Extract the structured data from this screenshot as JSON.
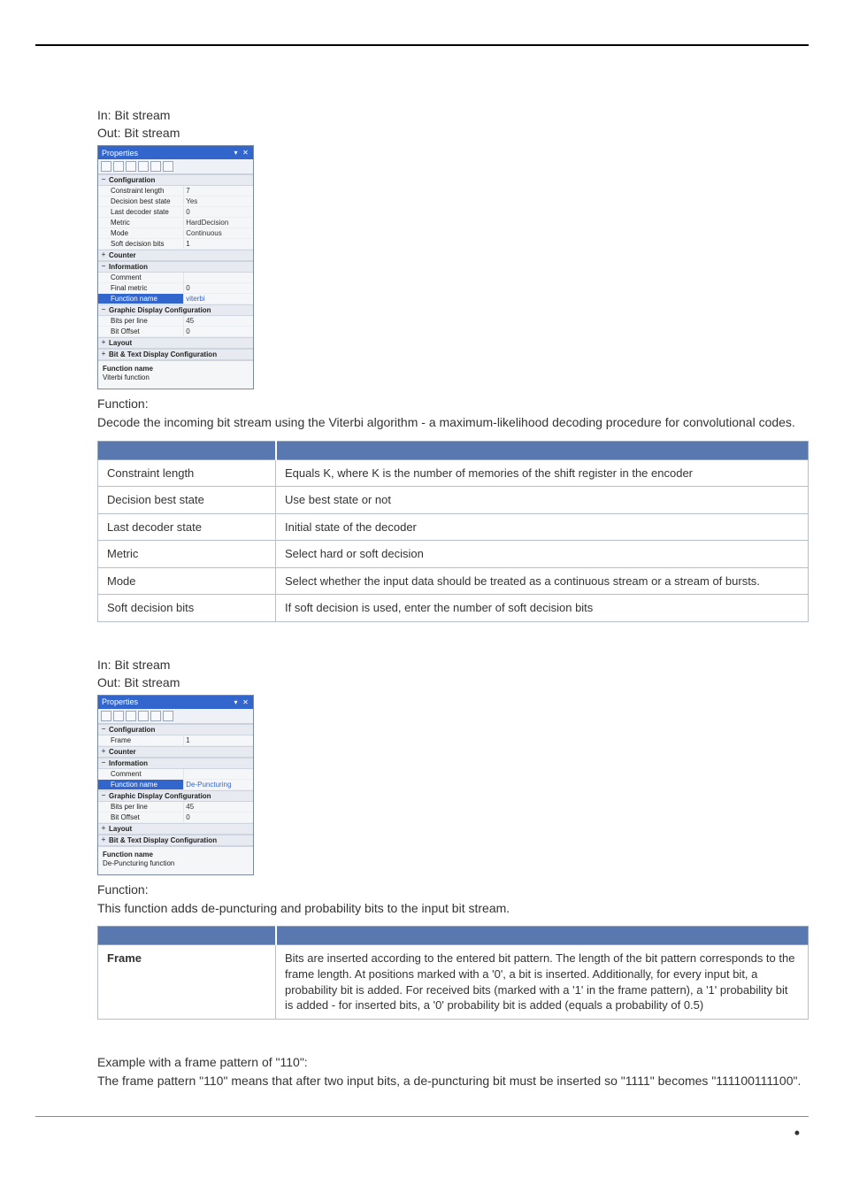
{
  "page": {
    "dot": "•"
  },
  "section1": {
    "in": "In: Bit stream",
    "out": "Out: Bit stream",
    "func_label": "Function:",
    "func_desc": "Decode the incoming bit stream using the Viterbi algorithm - a maximum-likelihood decoding procedure for convolutional codes.",
    "props": {
      "title": "Properties",
      "help_title": "Function name",
      "help_text": "Viterbi function",
      "cats": [
        {
          "name": "Configuration",
          "rows": [
            {
              "k": "Constraint length",
              "v": "7"
            },
            {
              "k": "Decision best state",
              "v": "Yes"
            },
            {
              "k": "Last decoder state",
              "v": "0"
            },
            {
              "k": "Metric",
              "v": "HardDecision"
            },
            {
              "k": "Mode",
              "v": "Continuous"
            },
            {
              "k": "Soft decision bits",
              "v": "1"
            }
          ]
        },
        {
          "name": "Counter",
          "collapsed": true,
          "rows": []
        },
        {
          "name": "Information",
          "rows": [
            {
              "k": "Comment",
              "v": ""
            },
            {
              "k": "Final metric",
              "v": "0"
            },
            {
              "k": "Function name",
              "v": "viterbi",
              "sel": true
            }
          ]
        },
        {
          "name": "Graphic Display Configuration",
          "rows": [
            {
              "k": "Bits per line",
              "v": "45"
            },
            {
              "k": "Bit Offset",
              "v": "0"
            }
          ]
        },
        {
          "name": "Layout",
          "collapsed": true,
          "rows": []
        },
        {
          "name": "Bit & Text Display Configuration",
          "collapsed": true,
          "rows": []
        }
      ]
    },
    "table": [
      {
        "k": "Constraint length",
        "v": "Equals K, where K is the number of memories of the shift register in the encoder"
      },
      {
        "k": "Decision best state",
        "v": "Use best state or not"
      },
      {
        "k": "Last decoder state",
        "v": "Initial state of the decoder"
      },
      {
        "k": "Metric",
        "v": "Select hard or soft decision"
      },
      {
        "k": "Mode",
        "v": "Select whether the input data should be treated as a continuous stream or a stream of bursts."
      },
      {
        "k": "Soft decision bits",
        "v": "If soft decision is used, enter the number of soft decision bits"
      }
    ]
  },
  "section2": {
    "in": "In: Bit stream",
    "out": "Out: Bit stream",
    "func_label": "Function:",
    "func_desc": "This function adds de-puncturing and probability bits to the input bit stream.",
    "props": {
      "title": "Properties",
      "help_title": "Function name",
      "help_text": "De-Puncturing function",
      "cats": [
        {
          "name": "Configuration",
          "rows": [
            {
              "k": "Frame",
              "v": "1"
            }
          ]
        },
        {
          "name": "Counter",
          "collapsed": true,
          "rows": []
        },
        {
          "name": "Information",
          "rows": [
            {
              "k": "Comment",
              "v": ""
            },
            {
              "k": "Function name",
              "v": "De-Puncturing",
              "sel": true
            }
          ]
        },
        {
          "name": "Graphic Display Configuration",
          "rows": [
            {
              "k": "Bits per line",
              "v": "45"
            },
            {
              "k": "Bit Offset",
              "v": "0"
            }
          ]
        },
        {
          "name": "Layout",
          "collapsed": true,
          "rows": []
        },
        {
          "name": "Bit & Text Display Configuration",
          "collapsed": true,
          "rows": []
        }
      ]
    },
    "table": [
      {
        "k": "Frame",
        "v": "Bits are inserted according to the entered bit pattern. The length of the bit pattern corresponds to the frame length. At positions marked with a '0', a bit is inserted. Additionally, for every input bit, a probability bit is added. For received bits (marked with a '1' in the frame pattern), a '1' probability bit is added - for inserted bits, a '0' probability bit is added (equals a probability of 0.5)"
      }
    ],
    "example_label": "Example with a frame pattern of \"110\":",
    "example_desc": "The frame pattern \"110\" means that after two input bits, a de-puncturing bit must be inserted so \"1111\" becomes \"111100111100\"."
  }
}
